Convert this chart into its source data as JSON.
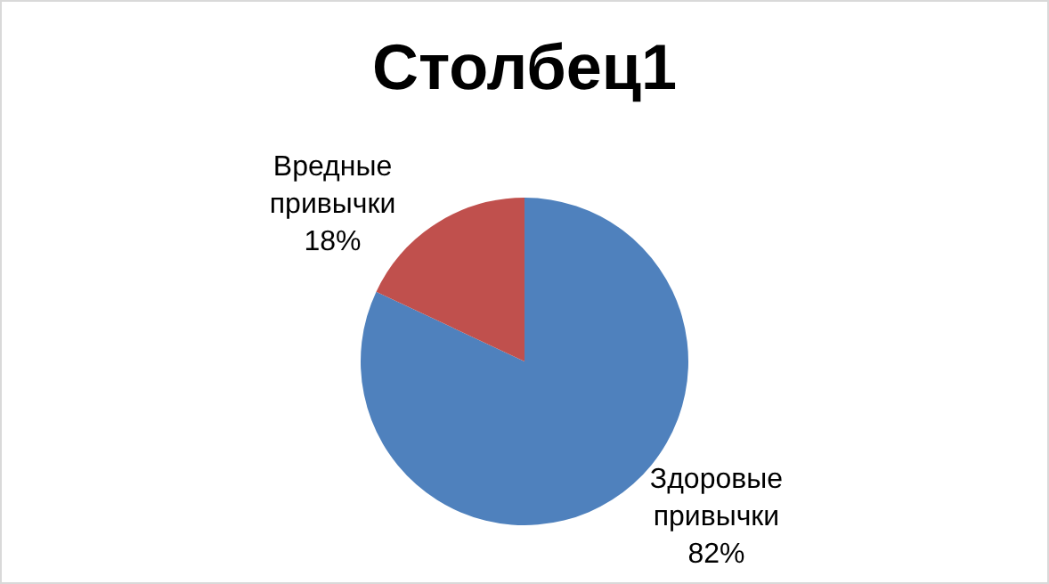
{
  "chart_data": {
    "type": "pie",
    "title": "Столбец1",
    "categories": [
      "Здоровые привычки",
      "Вредные привычки"
    ],
    "values": [
      82,
      18
    ],
    "colors": [
      "#4f81bd",
      "#c0504d"
    ],
    "value_labels": [
      "82%",
      "18%"
    ],
    "legend": false
  }
}
